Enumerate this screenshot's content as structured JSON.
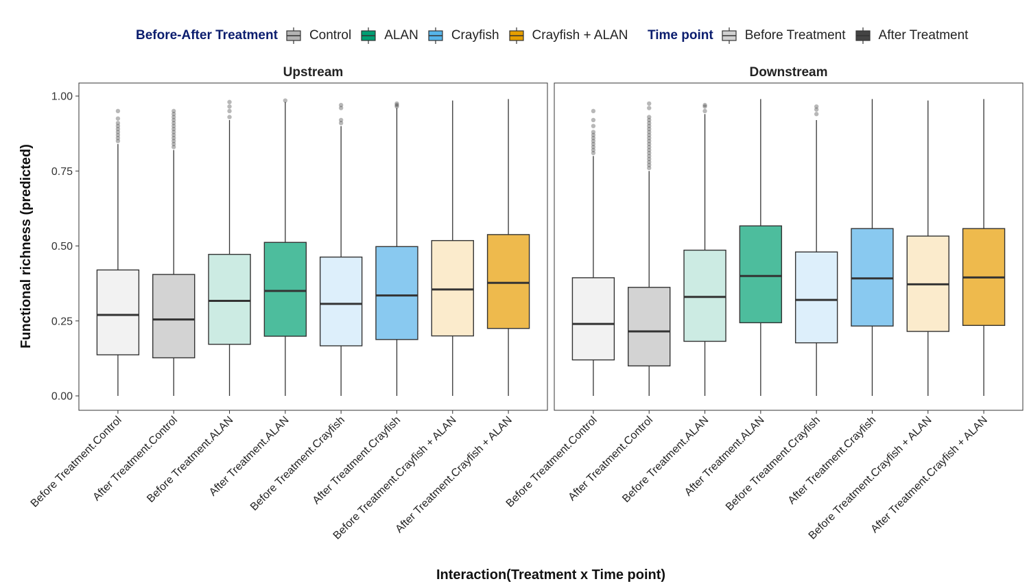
{
  "chart_data": {
    "type": "boxplot",
    "xlabel": "Interaction(Treatment x Time point)",
    "ylabel": "Functional richness (predicted)",
    "ylim": [
      0,
      1.0
    ],
    "yticks": [
      "0.00",
      "0.25",
      "0.50",
      "0.75",
      "1.00"
    ],
    "grid": false,
    "legend_position": "top",
    "legends": [
      {
        "title": "Before-After Treatment",
        "entries": [
          {
            "label": "Control",
            "color": "#B3B3B3"
          },
          {
            "label": "ALAN",
            "color": "#009E73"
          },
          {
            "label": "Crayfish",
            "color": "#56B4E9"
          },
          {
            "label": "Crayfish + ALAN",
            "color": "#E69F00"
          }
        ]
      },
      {
        "title": "Time point",
        "entries": [
          {
            "label": "Before Treatment",
            "color": "#D0D0D0"
          },
          {
            "label": "After Treatment",
            "color": "#444444"
          }
        ]
      }
    ],
    "categories": [
      "Before Treatment.Control",
      "After Treatment.Control",
      "Before Treatment.ALAN",
      "After Treatment.ALAN",
      "Before Treatment.Crayfish",
      "After Treatment.Crayfish",
      "Before Treatment.Crayfish + ALAN",
      "After Treatment.Crayfish + ALAN"
    ],
    "box_colors": [
      "#F2F2F2",
      "#D3D3D3",
      "#CCEBE3",
      "#4DBD9D",
      "#DDEFFB",
      "#89C9F0",
      "#FBEBCC",
      "#EEBA4D"
    ],
    "panels": [
      {
        "title": "Upstream",
        "boxes": [
          {
            "min": 0.0,
            "q1": 0.137,
            "median": 0.27,
            "q3": 0.42,
            "max": 0.84,
            "outliers": [
              0.85,
              0.86,
              0.87,
              0.88,
              0.89,
              0.9,
              0.91,
              0.925,
              0.95
            ]
          },
          {
            "min": 0.0,
            "q1": 0.127,
            "median": 0.255,
            "q3": 0.405,
            "max": 0.82,
            "outliers": [
              0.83,
              0.84,
              0.85,
              0.86,
              0.87,
              0.88,
              0.89,
              0.9,
              0.91,
              0.92,
              0.93,
              0.94,
              0.95
            ]
          },
          {
            "min": 0.0,
            "q1": 0.172,
            "median": 0.317,
            "q3": 0.472,
            "max": 0.92,
            "outliers": [
              0.93,
              0.95,
              0.965,
              0.98
            ]
          },
          {
            "min": 0.0,
            "q1": 0.199,
            "median": 0.35,
            "q3": 0.512,
            "max": 0.98,
            "outliers": [
              0.985
            ]
          },
          {
            "min": 0.0,
            "q1": 0.167,
            "median": 0.307,
            "q3": 0.463,
            "max": 0.9,
            "outliers": [
              0.91,
              0.92,
              0.96,
              0.97
            ]
          },
          {
            "min": 0.0,
            "q1": 0.188,
            "median": 0.335,
            "q3": 0.498,
            "max": 0.96,
            "outliers": [
              0.965,
              0.97,
              0.975
            ]
          },
          {
            "min": 0.0,
            "q1": 0.2,
            "median": 0.355,
            "q3": 0.518,
            "max": 0.985,
            "outliers": []
          },
          {
            "min": 0.0,
            "q1": 0.225,
            "median": 0.377,
            "q3": 0.538,
            "max": 0.99,
            "outliers": []
          }
        ]
      },
      {
        "title": "Downstream",
        "boxes": [
          {
            "min": 0.0,
            "q1": 0.12,
            "median": 0.24,
            "q3": 0.394,
            "max": 0.8,
            "outliers": [
              0.81,
              0.82,
              0.83,
              0.84,
              0.85,
              0.86,
              0.87,
              0.88,
              0.9,
              0.92,
              0.95
            ]
          },
          {
            "min": 0.0,
            "q1": 0.1,
            "median": 0.215,
            "q3": 0.362,
            "max": 0.75,
            "outliers": [
              0.76,
              0.77,
              0.78,
              0.79,
              0.8,
              0.81,
              0.82,
              0.83,
              0.84,
              0.85,
              0.86,
              0.87,
              0.88,
              0.89,
              0.9,
              0.91,
              0.92,
              0.93,
              0.96,
              0.975
            ]
          },
          {
            "min": 0.0,
            "q1": 0.182,
            "median": 0.33,
            "q3": 0.486,
            "max": 0.94,
            "outliers": [
              0.95,
              0.965,
              0.97
            ]
          },
          {
            "min": 0.0,
            "q1": 0.244,
            "median": 0.4,
            "q3": 0.567,
            "max": 0.99,
            "outliers": []
          },
          {
            "min": 0.0,
            "q1": 0.177,
            "median": 0.32,
            "q3": 0.48,
            "max": 0.92,
            "outliers": [
              0.94,
              0.955,
              0.965
            ]
          },
          {
            "min": 0.0,
            "q1": 0.233,
            "median": 0.392,
            "q3": 0.558,
            "max": 0.99,
            "outliers": []
          },
          {
            "min": 0.0,
            "q1": 0.215,
            "median": 0.372,
            "q3": 0.533,
            "max": 0.985,
            "outliers": []
          },
          {
            "min": 0.0,
            "q1": 0.235,
            "median": 0.395,
            "q3": 0.558,
            "max": 0.99,
            "outliers": []
          }
        ]
      }
    ]
  }
}
